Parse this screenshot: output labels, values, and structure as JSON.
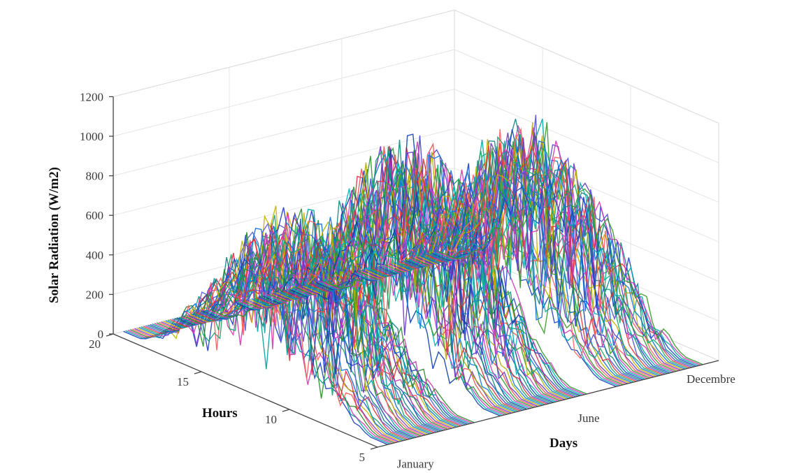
{
  "chart_data": {
    "type": "line",
    "subtype": "3d-line-waterfall",
    "title": "",
    "zlabel": "Solar Radiation (W/m2)",
    "ylabel": "Hours",
    "xlabel": "Days",
    "zlim": [
      0,
      1200
    ],
    "ylim": [
      5,
      20
    ],
    "z_ticks": [
      "0",
      "200",
      "400",
      "600",
      "800",
      "1000",
      "1200"
    ],
    "y_ticks": [
      "5",
      "10",
      "15",
      "20"
    ],
    "x_ticks": [
      "January",
      "June",
      "Decembre"
    ],
    "grid": true,
    "hours": [
      5,
      6,
      7,
      8,
      9,
      10,
      11,
      12,
      13,
      14,
      15,
      16,
      17,
      18,
      19,
      20
    ],
    "day_blocks": [
      {
        "peak": 800,
        "colors": [
          "#1f3fbf",
          "#00a0a0",
          "#d23ab0",
          "#2e8b2e",
          "#ff5a5a",
          "#7a3cc9",
          "#c8b400",
          "#0a6ad6",
          "#1aa36b",
          "#e0303a",
          "#5b5bd6",
          "#10807f"
        ]
      },
      {
        "peak": 1000,
        "colors": [
          "#0b3fa8",
          "#00b5b5",
          "#c93cc0",
          "#2f9a2f",
          "#f05050",
          "#6a35c2",
          "#b0b000",
          "#0c7ae0",
          "#15a060",
          "#d83040",
          "#4444cc",
          "#0f8c7c"
        ]
      },
      {
        "peak": 950,
        "colors": [
          "#1b44c4",
          "#04a8a8",
          "#cf39b4",
          "#3a9a2a",
          "#ff6060",
          "#7038c0",
          "#c0b000",
          "#1370d8",
          "#1ba870",
          "#e23838",
          "#5050d0",
          "#118585"
        ]
      }
    ]
  }
}
